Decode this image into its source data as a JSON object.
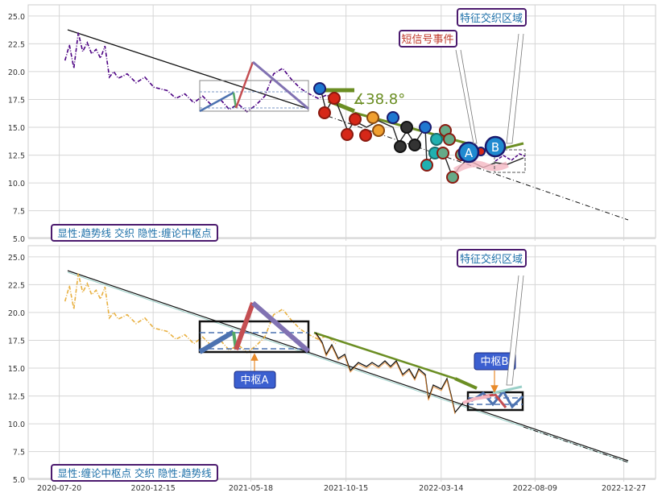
{
  "chart_data": [
    {
      "type": "line",
      "panel": "top",
      "ylim": [
        4.8,
        26
      ],
      "yticks": [
        5.0,
        7.5,
        10.0,
        12.5,
        15.0,
        17.5,
        20.0,
        22.5,
        25.0
      ],
      "grid": true,
      "annotation_bottom": "显性:趋势线 交织 隐性:缠论中枢点",
      "callout_signal": "短信号事件",
      "callout_feature": "特征交织区域",
      "angle_label": "∡38.8°",
      "marker_a": "A",
      "marker_b": "B",
      "price_series": [
        [
          "2020-07-29",
          21.0
        ],
        [
          "2020-08-05",
          22.4
        ],
        [
          "2020-08-12",
          20.3
        ],
        [
          "2020-08-19",
          23.5
        ],
        [
          "2020-08-26",
          21.8
        ],
        [
          "2020-09-02",
          22.6
        ],
        [
          "2020-09-09",
          21.6
        ],
        [
          "2020-09-16",
          22.0
        ],
        [
          "2020-09-23",
          21.2
        ],
        [
          "2020-09-30",
          22.3
        ],
        [
          "2020-10-07",
          19.5
        ],
        [
          "2020-10-14",
          20.0
        ],
        [
          "2020-10-21",
          19.4
        ],
        [
          "2020-11-04",
          19.8
        ],
        [
          "2020-11-18",
          19.0
        ],
        [
          "2020-12-02",
          19.5
        ],
        [
          "2020-12-16",
          18.6
        ],
        [
          "2021-01-06",
          18.3
        ],
        [
          "2021-01-20",
          17.6
        ],
        [
          "2021-02-03",
          18.0
        ],
        [
          "2021-02-17",
          17.2
        ],
        [
          "2021-03-03",
          17.8
        ],
        [
          "2021-03-17",
          17.0
        ],
        [
          "2021-03-31",
          17.5
        ],
        [
          "2021-04-14",
          16.6
        ],
        [
          "2021-04-28",
          17.1
        ],
        [
          "2021-05-12",
          16.4
        ],
        [
          "2021-05-26",
          17.0
        ],
        [
          "2021-06-09",
          17.8
        ],
        [
          "2021-06-23",
          19.8
        ],
        [
          "2021-07-07",
          20.3
        ],
        [
          "2021-07-21",
          19.3
        ],
        [
          "2021-08-04",
          18.5
        ],
        [
          "2021-08-18",
          18.0
        ],
        [
          "2021-09-01",
          17.6
        ],
        [
          "2021-09-15",
          17.9
        ],
        [
          "2021-09-29",
          17.2
        ]
      ],
      "trend_line": [
        [
          "2020-08-12",
          23.8
        ],
        [
          "2021-10-08",
          16.6
        ]
      ],
      "trend_extension": [
        [
          "2022-07-20",
          12.5
        ],
        [
          "2023-01-20",
          6.5
        ]
      ],
      "zhongshu_box": {
        "x": [
          "2021-05-12",
          "2021-10-08"
        ],
        "y": [
          16.5,
          19.2
        ],
        "inner_y": [
          16.9,
          18.2
        ]
      },
      "feature_box": {
        "x": [
          "2022-07-01",
          "2022-08-20"
        ],
        "y": [
          11.0,
          12.8
        ]
      }
    },
    {
      "type": "line",
      "panel": "bottom",
      "ylim": [
        4.8,
        26
      ],
      "yticks": [
        5.0,
        7.5,
        10.0,
        12.5,
        15.0,
        17.5,
        20.0,
        22.5,
        25.0
      ],
      "grid": true,
      "xticks": [
        "2020-07-20",
        "2020-12-15",
        "2021-05-18",
        "2021-10-15",
        "2022-03-14",
        "2022-08-09",
        "2022-12-27"
      ],
      "annotation_bottom": "显性:缠论中枢点 交织 隐性:趋势线",
      "callout_feature": "特征交织区域",
      "label_zhongshu_a": "中枢A",
      "label_zhongshu_b": "中枢B",
      "trend_line": [
        [
          "2020-08-12",
          23.8
        ],
        [
          "2023-01-20",
          6.5
        ]
      ],
      "zhongshu_a_box": {
        "x": [
          "2021-05-12",
          "2021-10-08"
        ],
        "y": [
          16.5,
          19.2
        ],
        "inner_y": [
          16.9,
          18.2
        ]
      },
      "zhongshu_b_box": {
        "x": [
          "2022-06-20",
          "2022-09-03"
        ],
        "y": [
          11.3,
          12.8
        ],
        "inner_y": [
          11.8,
          12.3
        ]
      }
    }
  ],
  "colors": {
    "price_top": "#4b0082",
    "price_bottom": "#e8b040",
    "trend": "#111111",
    "olive": "#6b8e23",
    "bi_blue": "#4c72b0",
    "bi_red": "#c44e52",
    "bi_green": "#55a868",
    "bi_purple": "#8172b2",
    "label_box": "#3b5fd0",
    "callout_border": "#4b1a6e",
    "callout_text": "#1c6fa8",
    "signal_text": "#c0392b"
  }
}
